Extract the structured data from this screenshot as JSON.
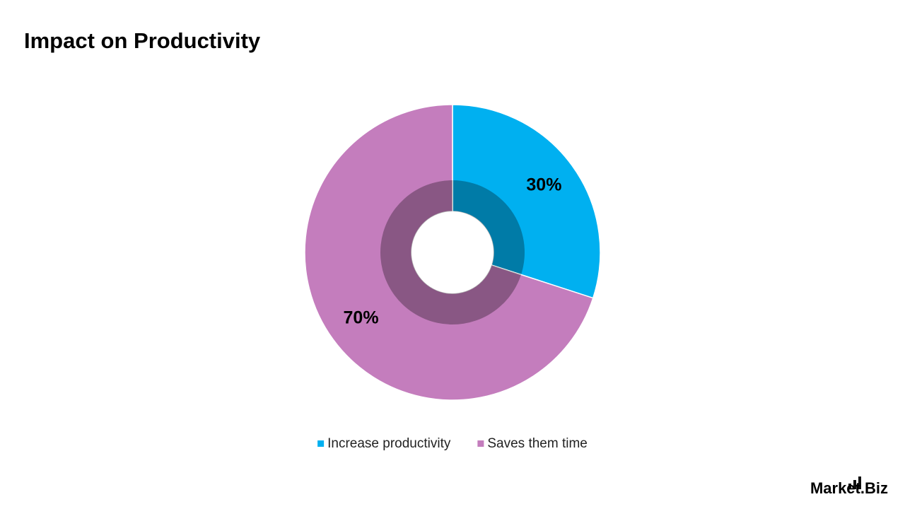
{
  "chart_data": {
    "type": "pie",
    "title": "Impact on Productivity",
    "categories": [
      "Increase productivity",
      "Saves them time"
    ],
    "values": [
      30,
      70
    ],
    "value_labels": [
      "30%",
      "70%"
    ],
    "colors": [
      "#00b0f0",
      "#c47dbd"
    ],
    "donut": true
  },
  "brand": "Market.Biz"
}
